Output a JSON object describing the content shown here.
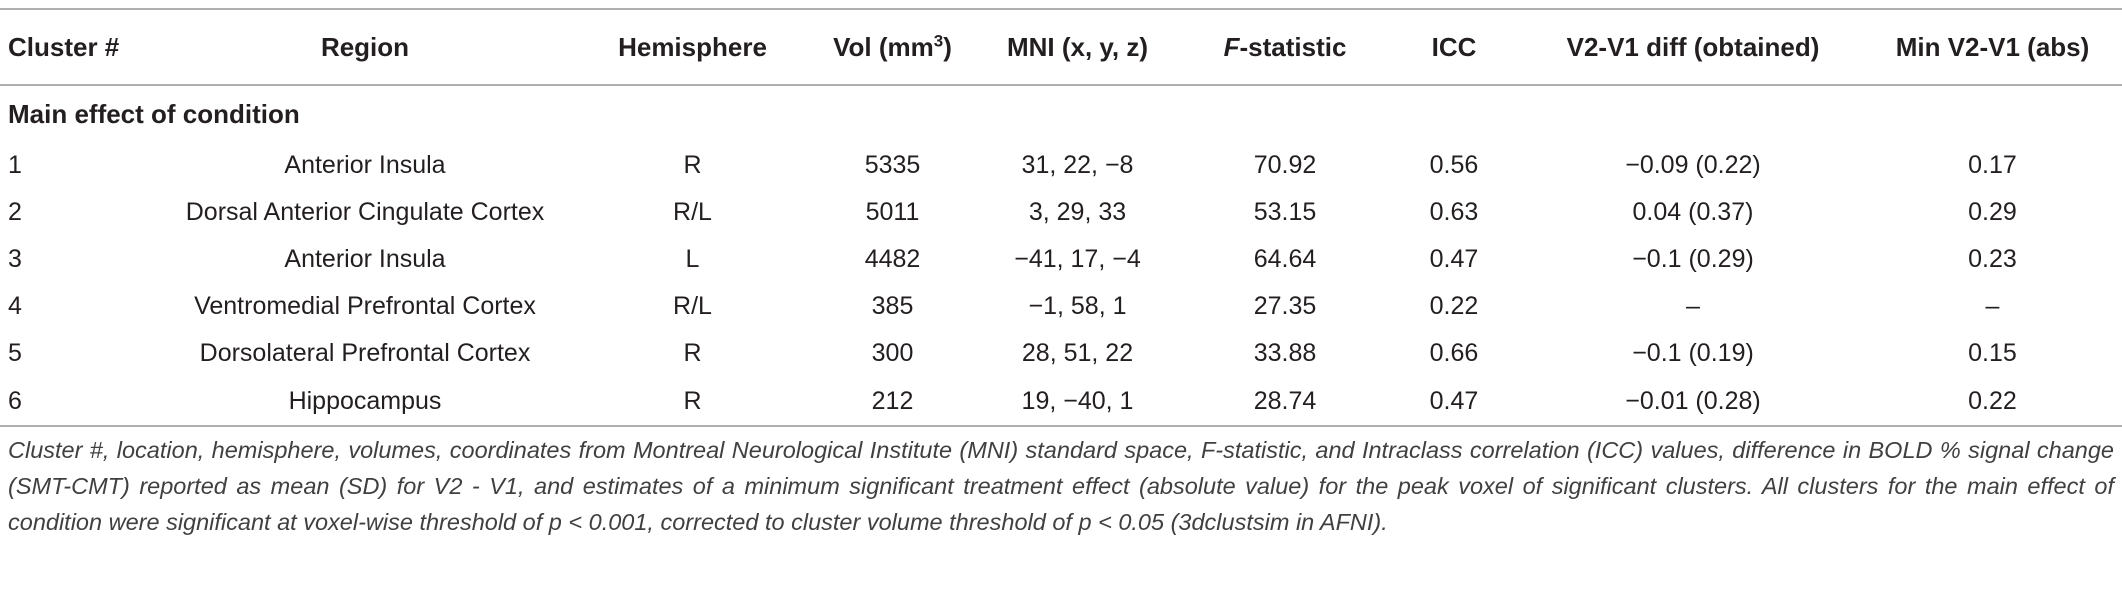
{
  "table": {
    "headers": {
      "cluster": "Cluster #",
      "region": "Region",
      "hemisphere": "Hemisphere",
      "vol": "Vol (mm",
      "vol_sup": "3",
      "vol_close": ")",
      "mni": "MNI (x, y, z)",
      "f_italic": "F",
      "f_rest": "-statistic",
      "icc": "ICC",
      "diff": "V2-V1 diff (obtained)",
      "min": "Min V2-V1 (abs)"
    },
    "section_label": "Main effect of condition",
    "rows": [
      {
        "cluster": "1",
        "region": "Anterior Insula",
        "hemisphere": "R",
        "vol": "5335",
        "mni": "31, 22, −8",
        "f": "70.92",
        "icc": "0.56",
        "diff": "−0.09 (0.22)",
        "min": "0.17"
      },
      {
        "cluster": "2",
        "region": "Dorsal Anterior Cingulate Cortex",
        "hemisphere": "R/L",
        "vol": "5011",
        "mni": "3, 29, 33",
        "f": "53.15",
        "icc": "0.63",
        "diff": "0.04 (0.37)",
        "min": "0.29"
      },
      {
        "cluster": "3",
        "region": "Anterior Insula",
        "hemisphere": "L",
        "vol": "4482",
        "mni": "−41, 17, −4",
        "f": "64.64",
        "icc": "0.47",
        "diff": "−0.1 (0.29)",
        "min": "0.23"
      },
      {
        "cluster": "4",
        "region": "Ventromedial Prefrontal Cortex",
        "hemisphere": "R/L",
        "vol": "385",
        "mni": "−1, 58, 1",
        "f": "27.35",
        "icc": "0.22",
        "diff": "–",
        "min": "–"
      },
      {
        "cluster": "5",
        "region": "Dorsolateral Prefrontal Cortex",
        "hemisphere": "R",
        "vol": "300",
        "mni": "28, 51, 22",
        "f": "33.88",
        "icc": "0.66",
        "diff": "−0.1 (0.19)",
        "min": "0.15"
      },
      {
        "cluster": "6",
        "region": "Hippocampus",
        "hemisphere": "R",
        "vol": "212",
        "mni": "19, −40, 1",
        "f": "28.74",
        "icc": "0.47",
        "diff": "−0.01 (0.28)",
        "min": "0.22"
      }
    ]
  },
  "caption": "Cluster #, location, hemisphere, volumes, coordinates from Montreal Neurological Institute (MNI) standard space, F-statistic, and Intraclass correlation (ICC) values, difference in BOLD % signal change (SMT-CMT) reported as mean (SD) for V2 - V1, and estimates of a minimum significant treatment effect (absolute value) for the peak voxel of significant clusters. All clusters for the main effect of condition were significant at voxel-wise threshold of p < 0.001, corrected to cluster volume threshold of p < 0.05 (3dclustsim in AFNI)."
}
